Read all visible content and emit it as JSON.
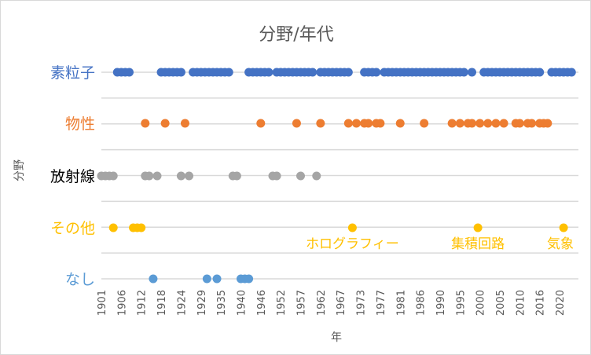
{
  "chart_data": {
    "type": "scatter",
    "title": "分野/年代",
    "xlabel": "年",
    "ylabel": "分野",
    "grid": true,
    "x_axis_note": "category index of prizes; tick label every 5 categories",
    "tick_labels": [
      "1901",
      "1906",
      "1912",
      "1918",
      "1924",
      "1929",
      "1935",
      "1940",
      "1946",
      "1952",
      "1957",
      "1962",
      "1967",
      "1973",
      "1977",
      "1981",
      "1986",
      "1990",
      "1995",
      "2000",
      "2005",
      "2010",
      "2016",
      "2020"
    ],
    "xlim": [
      0,
      118
    ],
    "series": [
      {
        "name": "素粒子",
        "color": "#4472C4",
        "x": [
          4,
          5,
          6,
          7,
          15,
          16,
          17,
          18,
          19,
          20,
          23,
          24,
          25,
          26,
          27,
          28,
          29,
          30,
          31,
          32,
          37,
          38,
          39,
          40,
          41,
          42,
          44,
          45,
          46,
          47,
          48,
          49,
          50,
          51,
          52,
          53,
          55,
          56,
          57,
          58,
          59,
          60,
          61,
          62,
          66,
          67,
          68,
          69,
          71,
          72,
          73,
          74,
          75,
          76,
          77,
          78,
          79,
          80,
          81,
          82,
          83,
          84,
          85,
          86,
          87,
          88,
          89,
          90,
          91,
          93,
          96,
          97,
          98,
          99,
          100,
          101,
          102,
          103,
          104,
          105,
          106,
          107,
          108,
          109,
          110,
          113,
          114,
          115,
          116,
          117,
          118
        ]
      },
      {
        "name": "物性",
        "color": "#ED7D31",
        "x": [
          11,
          16,
          21,
          40,
          49,
          55,
          62,
          64,
          66,
          67,
          69,
          70,
          75,
          81,
          88,
          90,
          92,
          93,
          95,
          97,
          99,
          101,
          104,
          105,
          107,
          108,
          110,
          111,
          112
        ]
      },
      {
        "name": "放射線",
        "color": "#A5A5A5",
        "label_color": "#000000",
        "x": [
          0,
          1,
          2,
          3,
          11,
          12,
          14,
          20,
          22,
          33,
          34,
          43,
          44,
          50,
          54
        ]
      },
      {
        "name": "その他",
        "color": "#FFC000",
        "x": [
          3,
          8,
          9,
          10,
          63,
          94.5,
          116
        ]
      },
      {
        "name": "なし",
        "color": "#5B9BD5",
        "x": [
          13,
          26.5,
          29,
          35,
          36,
          37
        ]
      }
    ],
    "annotations": [
      {
        "text": "ホログラフィー",
        "series": "その他",
        "x": 63
      },
      {
        "text": "集積回路",
        "series": "その他",
        "x": 94.5
      },
      {
        "text": "気象",
        "series": "その他",
        "x": 116
      }
    ]
  }
}
